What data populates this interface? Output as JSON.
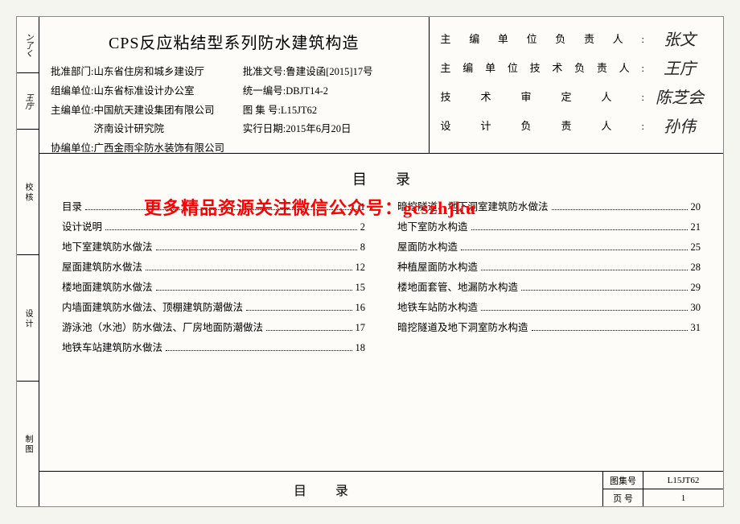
{
  "strip": {
    "top1": "ン了く",
    "top2": "王庁",
    "mid1": "校 核",
    "mid2": "设 计",
    "bot1": "制 图"
  },
  "title": "CPS反应粘结型系列防水建筑构造",
  "info_left": [
    {
      "label": "批准部门:",
      "val": "山东省住房和城乡建设厅"
    },
    {
      "label": "组编单位:",
      "val": "山东省标准设计办公室"
    },
    {
      "label": "主编单位:",
      "val": "中国航天建设集团有限公司\n济南设计研究院"
    },
    {
      "label": "协编单位:",
      "val": "广西金雨伞防水装饰有限公司"
    }
  ],
  "info_right": [
    {
      "label": "批准文号:",
      "val": "鲁建设函[2015]17号"
    },
    {
      "label": "统一编号:",
      "val": "DBJT14-2"
    },
    {
      "label": "图 集 号:",
      "val": "L15JT62"
    },
    {
      "label": "实行日期:",
      "val": "2015年6月20日"
    }
  ],
  "responsibles": [
    {
      "label": "主编单位负责人:",
      "sig": "张文"
    },
    {
      "label": "主编单位技术负责人:",
      "sig": "王庁"
    },
    {
      "label": "技术审定人:",
      "sig": "陈芝会"
    },
    {
      "label": "设计负责人:",
      "sig": "孙伟"
    }
  ],
  "toc_title": "目录",
  "watermark": "更多精品资源关注微信公众号：gcszhjku",
  "toc_left": [
    {
      "label": "目录",
      "page": "1"
    },
    {
      "label": "设计说明",
      "page": "2"
    },
    {
      "label": "地下室建筑防水做法",
      "page": "8"
    },
    {
      "label": "屋面建筑防水做法",
      "page": "12"
    },
    {
      "label": "楼地面建筑防水做法",
      "page": "15"
    },
    {
      "label": "内墙面建筑防水做法、顶棚建筑防潮做法",
      "page": "16"
    },
    {
      "label": "游泳池（水池）防水做法、厂房地面防潮做法",
      "page": "17"
    },
    {
      "label": "地铁车站建筑防水做法",
      "page": "18"
    }
  ],
  "toc_right": [
    {
      "label": "暗挖隧道、地下洞室建筑防水做法",
      "page": "20"
    },
    {
      "label": "地下室防水构造",
      "page": "21"
    },
    {
      "label": "屋面防水构造",
      "page": "25"
    },
    {
      "label": "种植屋面防水构造",
      "page": "28"
    },
    {
      "label": "楼地面套管、地漏防水构造",
      "page": "29"
    },
    {
      "label": "地铁车站防水构造",
      "page": "30"
    },
    {
      "label": "暗挖隧道及地下洞室防水构造",
      "page": "31"
    }
  ],
  "footer": {
    "title": "目录",
    "book_no_label": "图集号",
    "book_no": "L15JT62",
    "page_label": "页  号",
    "page_no": "1"
  }
}
